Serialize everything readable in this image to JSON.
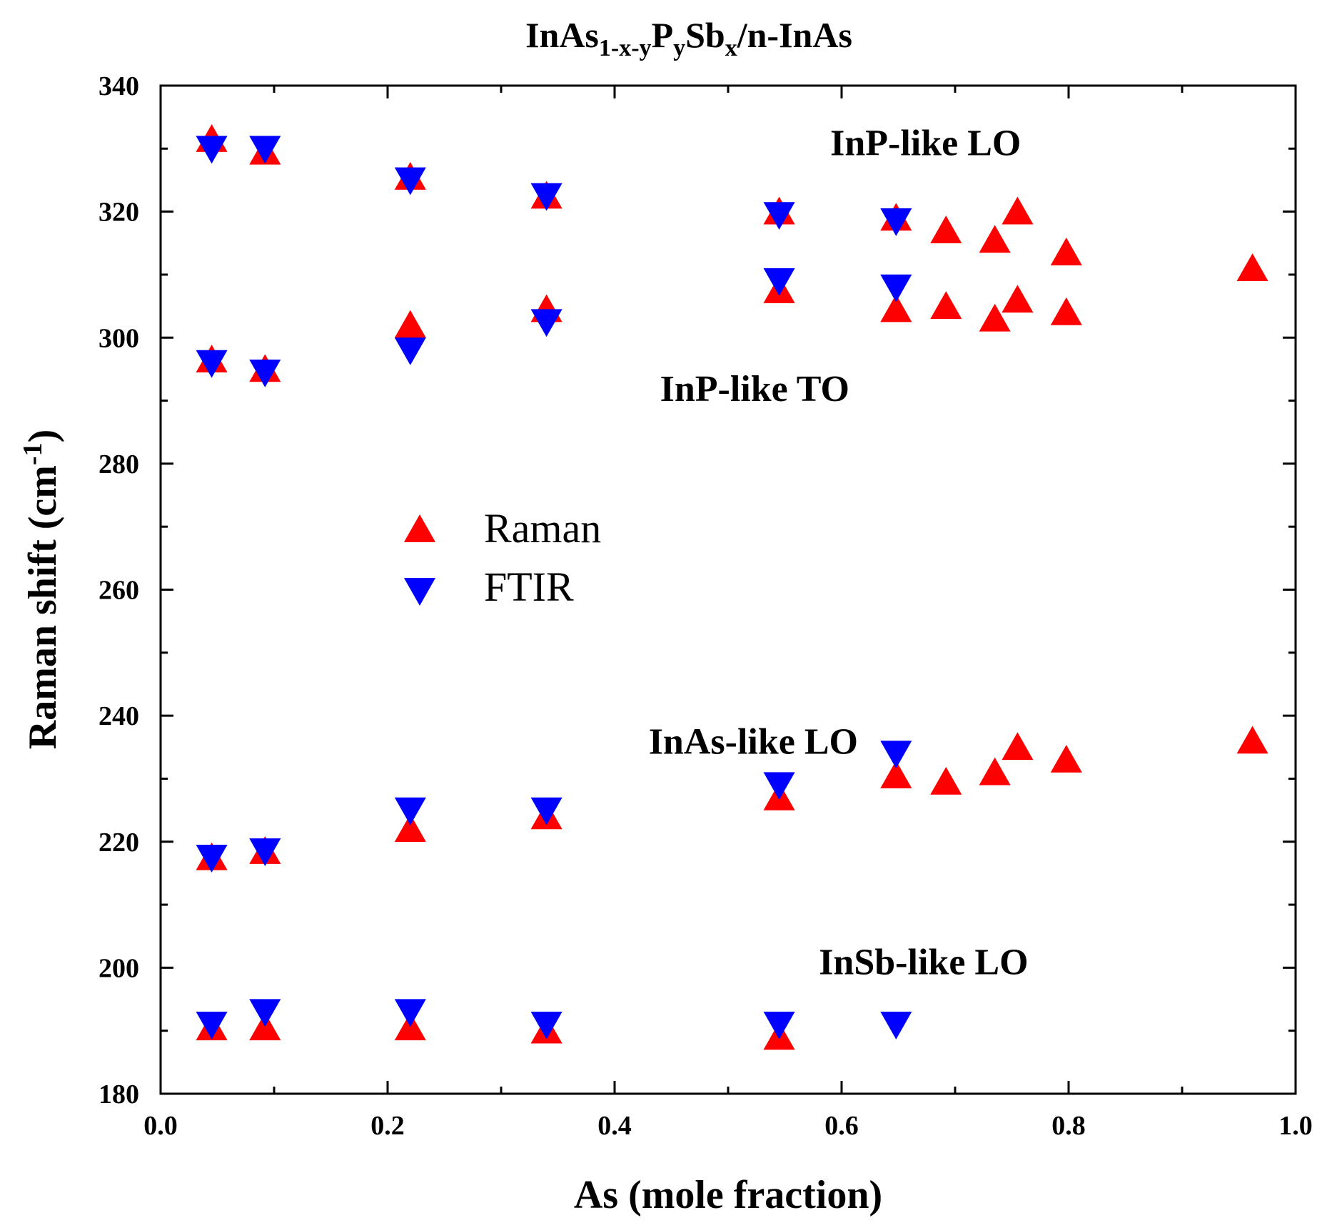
{
  "chart_data": {
    "type": "scatter",
    "title": {
      "base": "InAs",
      "sub1": "1-x-y",
      "p": "P",
      "sub2": "y",
      "sb": "Sb",
      "sub3": "x",
      "tail": "/n-InAs"
    },
    "xlabel": "As (mole fraction)",
    "ylabel": {
      "text": "Raman shift (cm",
      "sup": "-1",
      "close": ")"
    },
    "xlim": [
      0.0,
      1.0
    ],
    "ylim": [
      180,
      340
    ],
    "xticks": [
      0.0,
      0.2,
      0.4,
      0.6,
      0.8,
      1.0
    ],
    "xtick_labels": [
      "0.0",
      "0.2",
      "0.4",
      "0.6",
      "0.8",
      "1.0"
    ],
    "yticks": [
      180,
      200,
      220,
      240,
      260,
      280,
      300,
      320,
      340
    ],
    "ytick_labels": [
      "180",
      "200",
      "220",
      "240",
      "260",
      "280",
      "300",
      "320",
      "340"
    ],
    "grid": false,
    "legend_position": "center-left",
    "annotations": [
      {
        "text": "InP-like LO",
        "x": 0.59,
        "y": 331
      },
      {
        "text": "InP-like TO",
        "x": 0.44,
        "y": 292
      },
      {
        "text": "InAs-like LO",
        "x": 0.43,
        "y": 236
      },
      {
        "text": "InSb-like LO",
        "x": 0.58,
        "y": 201
      }
    ],
    "series": [
      {
        "name": "Raman",
        "marker": "triangle-up",
        "color": "#ff0000",
        "points": [
          {
            "x": 0.045,
            "y": 331.5
          },
          {
            "x": 0.092,
            "y": 329.5
          },
          {
            "x": 0.22,
            "y": 325.5
          },
          {
            "x": 0.34,
            "y": 322.5
          },
          {
            "x": 0.545,
            "y": 320
          },
          {
            "x": 0.648,
            "y": 319
          },
          {
            "x": 0.692,
            "y": 317
          },
          {
            "x": 0.735,
            "y": 315.5
          },
          {
            "x": 0.755,
            "y": 320
          },
          {
            "x": 0.798,
            "y": 313.5
          },
          {
            "x": 0.962,
            "y": 311
          },
          {
            "x": 0.045,
            "y": 296.5
          },
          {
            "x": 0.092,
            "y": 295
          },
          {
            "x": 0.22,
            "y": 302
          },
          {
            "x": 0.34,
            "y": 304.5
          },
          {
            "x": 0.545,
            "y": 307.5
          },
          {
            "x": 0.648,
            "y": 304.5
          },
          {
            "x": 0.692,
            "y": 305
          },
          {
            "x": 0.735,
            "y": 303
          },
          {
            "x": 0.755,
            "y": 306
          },
          {
            "x": 0.798,
            "y": 304
          },
          {
            "x": 0.045,
            "y": 217.5
          },
          {
            "x": 0.092,
            "y": 218.5
          },
          {
            "x": 0.22,
            "y": 222
          },
          {
            "x": 0.34,
            "y": 224
          },
          {
            "x": 0.545,
            "y": 227
          },
          {
            "x": 0.648,
            "y": 230.5
          },
          {
            "x": 0.692,
            "y": 229.5
          },
          {
            "x": 0.735,
            "y": 231
          },
          {
            "x": 0.755,
            "y": 235
          },
          {
            "x": 0.798,
            "y": 233
          },
          {
            "x": 0.962,
            "y": 236
          },
          {
            "x": 0.045,
            "y": 190.5
          },
          {
            "x": 0.092,
            "y": 190.5
          },
          {
            "x": 0.22,
            "y": 190.5
          },
          {
            "x": 0.34,
            "y": 190
          },
          {
            "x": 0.545,
            "y": 189
          }
        ]
      },
      {
        "name": "FTIR",
        "marker": "triangle-down",
        "color": "#0000ff",
        "points": [
          {
            "x": 0.045,
            "y": 330
          },
          {
            "x": 0.092,
            "y": 330
          },
          {
            "x": 0.22,
            "y": 325
          },
          {
            "x": 0.34,
            "y": 322.5
          },
          {
            "x": 0.545,
            "y": 319.5
          },
          {
            "x": 0.648,
            "y": 318.5
          },
          {
            "x": 0.045,
            "y": 296
          },
          {
            "x": 0.092,
            "y": 294.5
          },
          {
            "x": 0.22,
            "y": 298
          },
          {
            "x": 0.34,
            "y": 302.5
          },
          {
            "x": 0.545,
            "y": 309
          },
          {
            "x": 0.648,
            "y": 308
          },
          {
            "x": 0.045,
            "y": 217.5
          },
          {
            "x": 0.092,
            "y": 218.5
          },
          {
            "x": 0.22,
            "y": 225
          },
          {
            "x": 0.34,
            "y": 225
          },
          {
            "x": 0.545,
            "y": 229
          },
          {
            "x": 0.648,
            "y": 234
          },
          {
            "x": 0.045,
            "y": 191
          },
          {
            "x": 0.092,
            "y": 193
          },
          {
            "x": 0.22,
            "y": 193
          },
          {
            "x": 0.34,
            "y": 191
          },
          {
            "x": 0.545,
            "y": 191
          },
          {
            "x": 0.648,
            "y": 191
          }
        ]
      }
    ]
  }
}
